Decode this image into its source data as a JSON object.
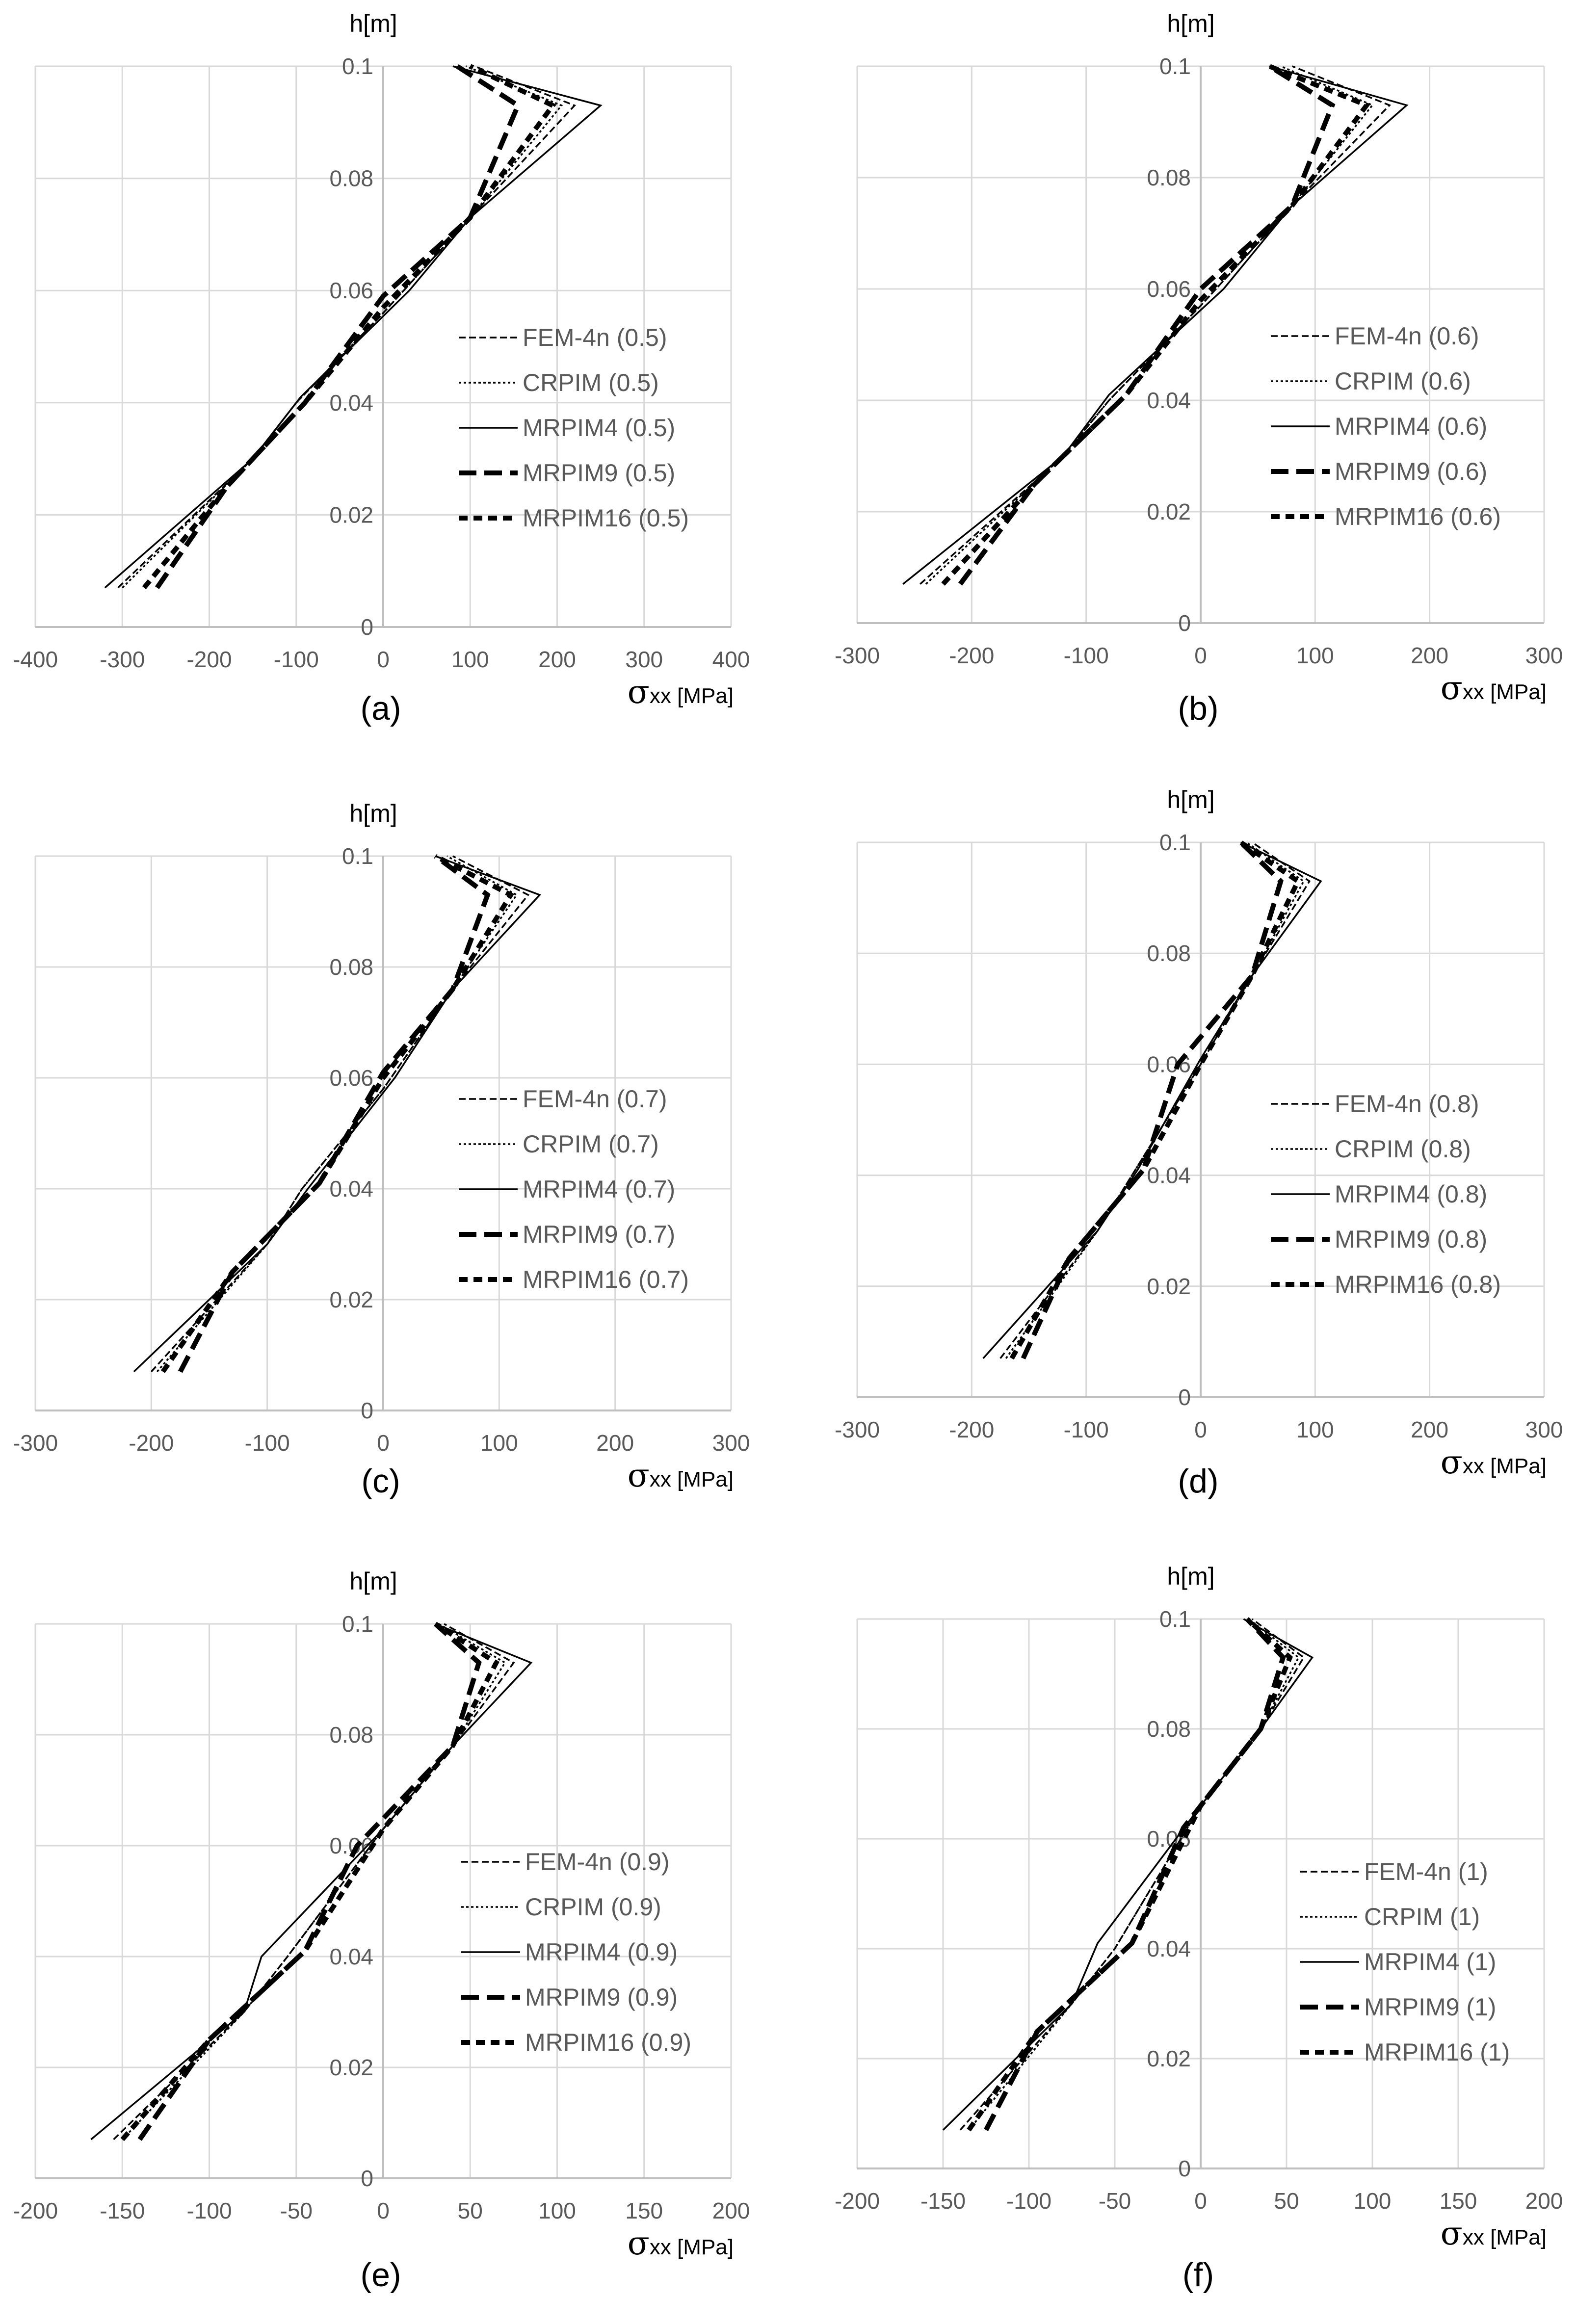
{
  "chart_data": [
    {
      "type": "line",
      "label": "(a)",
      "ylabel": "h[m]",
      "xlabel_symbol": "σ",
      "xlabel_sub": "xx",
      "xlabel_unit": "[MPa]",
      "xlim": [
        -400,
        400
      ],
      "ylim": [
        0,
        0.1
      ],
      "xticks": [
        -400,
        -300,
        -200,
        -100,
        0,
        100,
        200,
        300,
        400
      ],
      "yticks": [
        0,
        0.02,
        0.04,
        0.06,
        0.08,
        0.1
      ],
      "xtick_labels": [
        "-400",
        "-300",
        "-200",
        "-100",
        "0",
        "100",
        "200",
        "300",
        "400"
      ],
      "ytick_labels": [
        "0",
        "0.02",
        "0.04",
        "0.06",
        "0.08",
        "0.1"
      ],
      "series": [
        {
          "name": "FEM-4n (0.5)",
          "style": "fem",
          "x": [
            -305,
            -150,
            -100,
            0,
            100,
            220,
            105
          ],
          "y": [
            0.007,
            0.03,
            0.04,
            0.056,
            0.073,
            0.093,
            0.1
          ]
        },
        {
          "name": "CRPIM (0.5)",
          "style": "crpim",
          "x": [
            -300,
            -150,
            -100,
            0,
            100,
            205,
            95
          ],
          "y": [
            0.007,
            0.03,
            0.04,
            0.056,
            0.073,
            0.093,
            0.1
          ]
        },
        {
          "name": "MRPIM4 (0.5)",
          "style": "mrpim4",
          "x": [
            -320,
            -150,
            -95,
            30,
            100,
            250,
            80
          ],
          "y": [
            0.007,
            0.03,
            0.041,
            0.06,
            0.073,
            0.093,
            0.1
          ]
        },
        {
          "name": "MRPIM9 (0.5)",
          "style": "mrpim9",
          "x": [
            -260,
            -180,
            -90,
            0,
            100,
            155,
            85
          ],
          "y": [
            0.007,
            0.025,
            0.04,
            0.059,
            0.073,
            0.093,
            0.1
          ]
        },
        {
          "name": "MRPIM16 (0.5)",
          "style": "mrpim16",
          "x": [
            -275,
            -180,
            -90,
            0,
            100,
            195,
            100
          ],
          "y": [
            0.007,
            0.025,
            0.04,
            0.057,
            0.073,
            0.093,
            0.1
          ]
        }
      ]
    },
    {
      "type": "line",
      "label": "(b)",
      "ylabel": "h[m]",
      "xlabel_symbol": "σ",
      "xlabel_sub": "xx",
      "xlabel_unit": "[MPa]",
      "xlim": [
        -300,
        300
      ],
      "ylim": [
        0,
        0.1
      ],
      "xticks": [
        -300,
        -200,
        -100,
        0,
        100,
        200,
        300
      ],
      "yticks": [
        0,
        0.02,
        0.04,
        0.06,
        0.08,
        0.1
      ],
      "xtick_labels": [
        "-300",
        "-200",
        "-100",
        "0",
        "100",
        "200",
        "300"
      ],
      "ytick_labels": [
        "0",
        "0.02",
        "0.04",
        "0.06",
        "0.08",
        "0.1"
      ],
      "series": [
        {
          "name": "FEM-4n (0.6)",
          "style": "fem",
          "x": [
            -245,
            -120,
            -80,
            0,
            80,
            165,
            80
          ],
          "y": [
            0.007,
            0.03,
            0.04,
            0.057,
            0.075,
            0.093,
            0.1
          ]
        },
        {
          "name": "CRPIM (0.6)",
          "style": "crpim",
          "x": [
            -240,
            -120,
            -80,
            0,
            80,
            150,
            70
          ],
          "y": [
            0.007,
            0.03,
            0.04,
            0.057,
            0.075,
            0.093,
            0.1
          ]
        },
        {
          "name": "MRPIM4 (0.6)",
          "style": "mrpim4",
          "x": [
            -260,
            -120,
            -80,
            20,
            80,
            180,
            60
          ],
          "y": [
            0.007,
            0.03,
            0.041,
            0.06,
            0.075,
            0.093,
            0.1
          ]
        },
        {
          "name": "MRPIM9 (0.6)",
          "style": "mrpim9",
          "x": [
            -210,
            -145,
            -65,
            0,
            80,
            115,
            60
          ],
          "y": [
            0.007,
            0.025,
            0.041,
            0.06,
            0.075,
            0.093,
            0.1
          ]
        },
        {
          "name": "MRPIM16 (0.6)",
          "style": "mrpim16",
          "x": [
            -225,
            -145,
            -65,
            0,
            80,
            145,
            60
          ],
          "y": [
            0.007,
            0.025,
            0.041,
            0.058,
            0.075,
            0.093,
            0.1
          ]
        }
      ]
    },
    {
      "type": "line",
      "label": "(c)",
      "ylabel": "h[m]",
      "xlabel_symbol": "σ",
      "xlabel_sub": "xx",
      "xlabel_unit": "[MPa]",
      "xlim": [
        -300,
        300
      ],
      "ylim": [
        0,
        0.1
      ],
      "xticks": [
        -300,
        -200,
        -100,
        0,
        100,
        200,
        300
      ],
      "yticks": [
        0,
        0.02,
        0.04,
        0.06,
        0.08,
        0.1
      ],
      "xtick_labels": [
        "-300",
        "-200",
        "-100",
        "0",
        "100",
        "200",
        "300"
      ],
      "ytick_labels": [
        "0",
        "0.02",
        "0.04",
        "0.06",
        "0.08",
        "0.1"
      ],
      "series": [
        {
          "name": "FEM-4n (0.7)",
          "style": "fem",
          "x": [
            -200,
            -100,
            -70,
            0,
            60,
            125,
            60
          ],
          "y": [
            0.007,
            0.03,
            0.04,
            0.058,
            0.076,
            0.093,
            0.1
          ]
        },
        {
          "name": "CRPIM (0.7)",
          "style": "crpim",
          "x": [
            -195,
            -100,
            -70,
            0,
            60,
            115,
            55
          ],
          "y": [
            0.007,
            0.03,
            0.04,
            0.058,
            0.076,
            0.093,
            0.1
          ]
        },
        {
          "name": "MRPIM4 (0.7)",
          "style": "mrpim4",
          "x": [
            -215,
            -100,
            -65,
            10,
            60,
            135,
            45
          ],
          "y": [
            0.007,
            0.03,
            0.04,
            0.06,
            0.076,
            0.093,
            0.1
          ]
        },
        {
          "name": "MRPIM9 (0.7)",
          "style": "mrpim9",
          "x": [
            -175,
            -130,
            -55,
            0,
            60,
            90,
            45
          ],
          "y": [
            0.007,
            0.025,
            0.041,
            0.061,
            0.076,
            0.093,
            0.1
          ]
        },
        {
          "name": "MRPIM16 (0.7)",
          "style": "mrpim16",
          "x": [
            -190,
            -130,
            -55,
            0,
            60,
            110,
            45
          ],
          "y": [
            0.007,
            0.025,
            0.041,
            0.06,
            0.076,
            0.093,
            0.1
          ]
        }
      ]
    },
    {
      "type": "line",
      "label": "(d)",
      "ylabel": "h[m]",
      "xlabel_symbol": "σ",
      "xlabel_sub": "xx",
      "xlabel_unit": "[MPa]",
      "xlim": [
        -300,
        300
      ],
      "ylim": [
        0,
        0.1
      ],
      "xticks": [
        -300,
        -200,
        -100,
        0,
        100,
        200,
        300
      ],
      "yticks": [
        0,
        0.02,
        0.04,
        0.06,
        0.08,
        0.1
      ],
      "xtick_labels": [
        "-300",
        "-200",
        "-100",
        "0",
        "100",
        "200",
        "300"
      ],
      "ytick_labels": [
        "0",
        "0.02",
        "0.04",
        "0.06",
        "0.08",
        "0.1"
      ],
      "series": [
        {
          "name": "FEM-4n (0.8)",
          "style": "fem",
          "x": [
            -175,
            -90,
            -60,
            0,
            45,
            95,
            45
          ],
          "y": [
            0.007,
            0.03,
            0.04,
            0.06,
            0.076,
            0.093,
            0.1
          ]
        },
        {
          "name": "CRPIM (0.8)",
          "style": "crpim",
          "x": [
            -170,
            -90,
            -60,
            0,
            45,
            90,
            40
          ],
          "y": [
            0.007,
            0.03,
            0.04,
            0.06,
            0.076,
            0.093,
            0.1
          ]
        },
        {
          "name": "MRPIM4 (0.8)",
          "style": "mrpim4",
          "x": [
            -190,
            -90,
            -55,
            0,
            45,
            105,
            35
          ],
          "y": [
            0.007,
            0.03,
            0.041,
            0.061,
            0.076,
            0.093,
            0.1
          ]
        },
        {
          "name": "MRPIM9 (0.8)",
          "style": "mrpim9",
          "x": [
            -155,
            -115,
            -50,
            -20,
            45,
            70,
            35
          ],
          "y": [
            0.007,
            0.025,
            0.041,
            0.06,
            0.076,
            0.093,
            0.1
          ]
        },
        {
          "name": "MRPIM16 (0.8)",
          "style": "mrpim16",
          "x": [
            -165,
            -115,
            -50,
            0,
            45,
            85,
            35
          ],
          "y": [
            0.007,
            0.025,
            0.041,
            0.06,
            0.076,
            0.093,
            0.1
          ]
        }
      ]
    },
    {
      "type": "line",
      "label": "(e)",
      "ylabel": "h[m]",
      "xlabel_symbol": "σ",
      "xlabel_sub": "xx",
      "xlabel_unit": "[MPa]",
      "xlim": [
        -200,
        200
      ],
      "ylim": [
        0,
        0.1
      ],
      "xticks": [
        -200,
        -150,
        -100,
        -50,
        0,
        50,
        100,
        150,
        200
      ],
      "yticks": [
        0,
        0.02,
        0.04,
        0.06,
        0.08,
        0.1
      ],
      "xtick_labels": [
        "-200",
        "-150",
        "-100",
        "-50",
        "0",
        "50",
        "100",
        "150",
        "200"
      ],
      "ytick_labels": [
        "0",
        "0.02",
        "0.04",
        "0.06",
        "0.08",
        "0.1"
      ],
      "series": [
        {
          "name": "FEM-4n (0.9)",
          "style": "fem",
          "x": [
            -155,
            -80,
            -55,
            0,
            40,
            75,
            35
          ],
          "y": [
            0.007,
            0.03,
            0.04,
            0.063,
            0.078,
            0.093,
            0.1
          ]
        },
        {
          "name": "CRPIM (0.9)",
          "style": "crpim",
          "x": [
            -150,
            -80,
            -55,
            0,
            40,
            70,
            32
          ],
          "y": [
            0.007,
            0.03,
            0.04,
            0.063,
            0.078,
            0.093,
            0.1
          ]
        },
        {
          "name": "MRPIM4 (0.9)",
          "style": "mrpim4",
          "x": [
            -168,
            -80,
            -70,
            0,
            40,
            85,
            30
          ],
          "y": [
            0.007,
            0.03,
            0.04,
            0.063,
            0.078,
            0.093,
            0.1
          ]
        },
        {
          "name": "MRPIM9 (0.9)",
          "style": "mrpim9",
          "x": [
            -140,
            -100,
            -45,
            -15,
            40,
            55,
            30
          ],
          "y": [
            0.007,
            0.025,
            0.041,
            0.06,
            0.078,
            0.093,
            0.1
          ]
        },
        {
          "name": "MRPIM16 (0.9)",
          "style": "mrpim16",
          "x": [
            -150,
            -100,
            -45,
            0,
            40,
            65,
            30
          ],
          "y": [
            0.007,
            0.025,
            0.041,
            0.063,
            0.078,
            0.093,
            0.1
          ]
        }
      ]
    },
    {
      "type": "line",
      "label": "(f)",
      "ylabel": "h[m]",
      "xlabel_symbol": "σ",
      "xlabel_sub": "xx",
      "xlabel_unit": "[MPa]",
      "xlim": [
        -200,
        200
      ],
      "ylim": [
        0,
        0.1
      ],
      "xticks": [
        -200,
        -150,
        -100,
        -50,
        0,
        50,
        100,
        150,
        200
      ],
      "yticks": [
        0,
        0.02,
        0.04,
        0.06,
        0.08,
        0.1
      ],
      "xtick_labels": [
        "-200",
        "-150",
        "-100",
        "-50",
        "0",
        "50",
        "100",
        "150",
        "200"
      ],
      "ytick_labels": [
        "0",
        "0.02",
        "0.04",
        "0.06",
        "0.08",
        "0.1"
      ],
      "series": [
        {
          "name": "FEM-4n (1)",
          "style": "fem",
          "x": [
            -140,
            -75,
            -50,
            0,
            35,
            60,
            30
          ],
          "y": [
            0.007,
            0.03,
            0.04,
            0.066,
            0.08,
            0.093,
            0.1
          ]
        },
        {
          "name": "CRPIM (1)",
          "style": "crpim",
          "x": [
            -135,
            -75,
            -50,
            0,
            35,
            57,
            28
          ],
          "y": [
            0.007,
            0.03,
            0.04,
            0.066,
            0.08,
            0.093,
            0.1
          ]
        },
        {
          "name": "MRPIM4 (1)",
          "style": "mrpim4",
          "x": [
            -150,
            -75,
            -60,
            0,
            35,
            65,
            25
          ],
          "y": [
            0.007,
            0.03,
            0.041,
            0.066,
            0.08,
            0.093,
            0.1
          ]
        },
        {
          "name": "MRPIM9 (1)",
          "style": "mrpim9",
          "x": [
            -125,
            -95,
            -40,
            -10,
            35,
            48,
            27
          ],
          "y": [
            0.007,
            0.025,
            0.041,
            0.062,
            0.08,
            0.093,
            0.1
          ]
        },
        {
          "name": "MRPIM16 (1)",
          "style": "mrpim16",
          "x": [
            -135,
            -95,
            -40,
            0,
            35,
            52,
            27
          ],
          "y": [
            0.007,
            0.025,
            0.041,
            0.066,
            0.08,
            0.093,
            0.1
          ]
        }
      ]
    }
  ]
}
